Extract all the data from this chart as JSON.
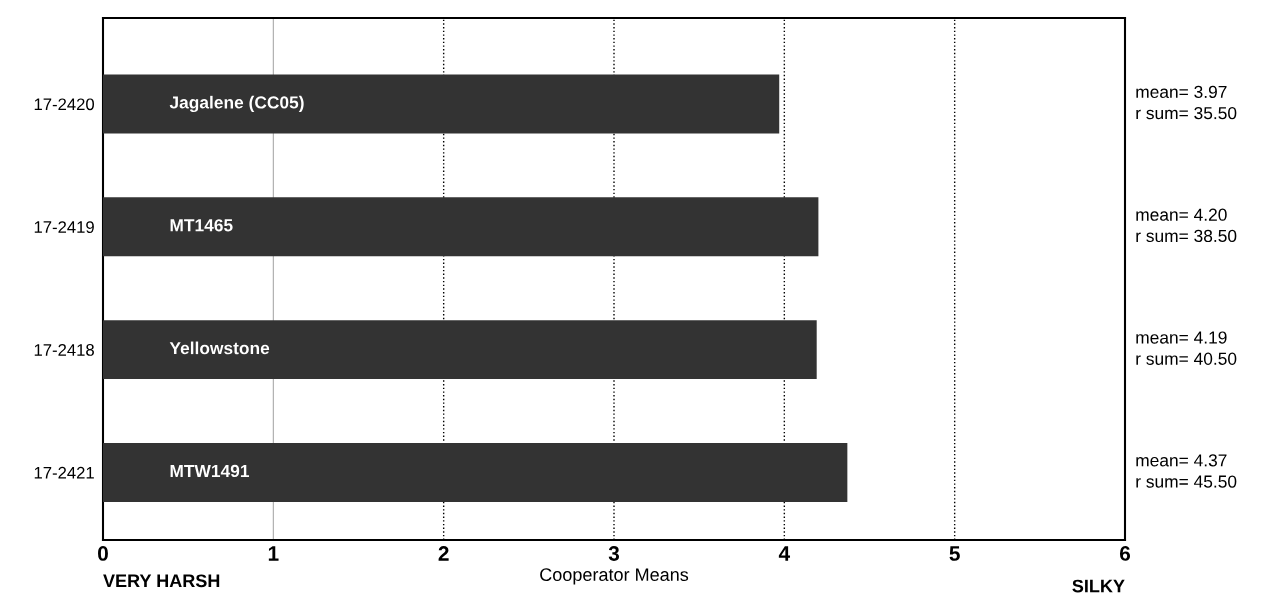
{
  "chart_data": {
    "type": "bar",
    "orientation": "horizontal",
    "xlabel": "Cooperator Means",
    "categories": [
      "17-2420",
      "17-2419",
      "17-2418",
      "17-2421"
    ],
    "values": [
      3.97,
      4.2,
      4.19,
      4.37
    ],
    "color": "#333333",
    "value_labels": [
      "mean= 3.97\nr sum= 35.50",
      "mean= 4.20\nr sum= 38.50",
      "mean= 4.19\nr sum= 40.50",
      "mean= 4.37\nr sum= 45.50"
    ],
    "xlim": [
      0,
      6
    ],
    "xticks": [
      0,
      1,
      2,
      3,
      4,
      5,
      6
    ],
    "ref_lines": [
      {
        "axis": "x",
        "value": 1,
        "color": "#aaaaaa",
        "line_style": "solid"
      },
      {
        "axis": "x",
        "value": 2,
        "color": "#000000",
        "line_style": "dotted"
      },
      {
        "axis": "x",
        "value": 3,
        "color": "#000000",
        "line_style": "dotted"
      },
      {
        "axis": "x",
        "value": 4,
        "color": "#000000",
        "line_style": "dotted"
      },
      {
        "axis": "x",
        "value": 5,
        "color": "#000000",
        "line_style": "dotted"
      }
    ],
    "annotations": [
      "Jagalene (CC05)",
      "MT1465",
      "Yellowstone",
      "MTW1491",
      "VERY HARSH",
      "SILKY"
    ]
  }
}
